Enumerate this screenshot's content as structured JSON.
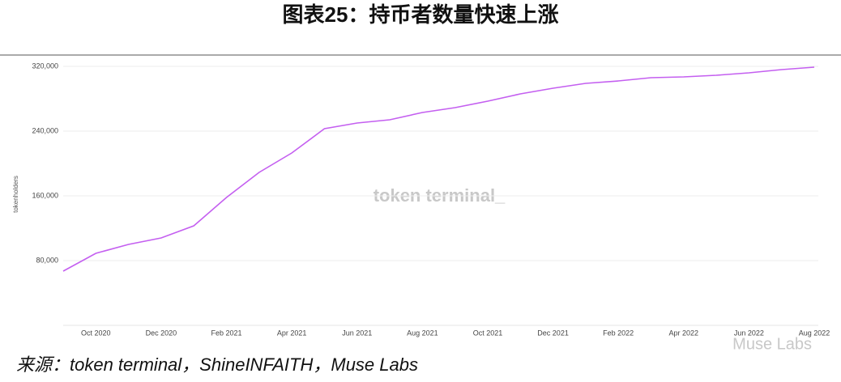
{
  "chart_data": {
    "type": "line",
    "title": "图表25：持币者数量快速上涨",
    "y_label": "tokenholders",
    "watermark": "token terminal_",
    "categories": [
      null,
      "Oct 2020",
      null,
      "Dec 2020",
      null,
      "Feb 2021",
      null,
      "Apr 2021",
      null,
      "Jun 2021",
      null,
      "Aug 2021",
      null,
      "Oct 2021",
      null,
      "Dec 2021",
      null,
      "Feb 2022",
      null,
      "Apr 2022",
      null,
      "Jun 2022",
      null,
      "Aug 2022"
    ],
    "series": [
      {
        "name": "tokenholders",
        "color": "#c45ff0",
        "values": [
          67000,
          89000,
          100000,
          108000,
          123000,
          158000,
          189000,
          213000,
          243000,
          250000,
          254000,
          263000,
          269000,
          277000,
          286000,
          293000,
          299000,
          302000,
          306000,
          307000,
          309000,
          312000,
          316000,
          319000
        ]
      }
    ],
    "ylim": [
      0,
      330000
    ],
    "yticks": [
      {
        "value": 80000,
        "label": "80,000"
      },
      {
        "value": 160000,
        "label": "160,000"
      },
      {
        "value": 240000,
        "label": "240,000"
      },
      {
        "value": 320000,
        "label": "320,000"
      }
    ],
    "grid": true
  },
  "footer": {
    "source": "来源：token terminal，ShineINFAITH，Muse Labs",
    "badge": "Muse Labs"
  }
}
